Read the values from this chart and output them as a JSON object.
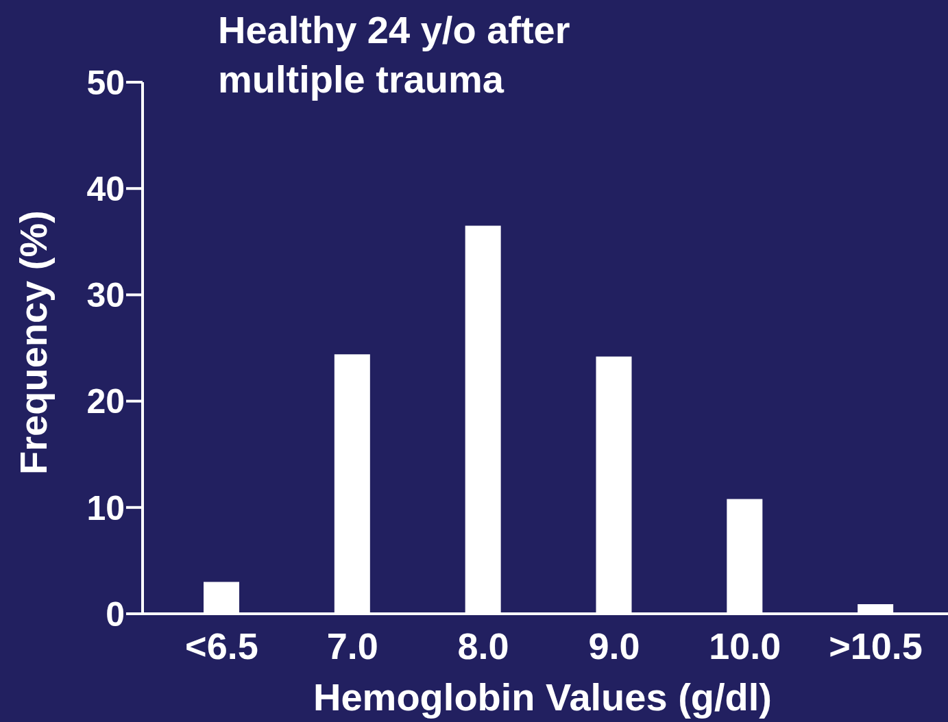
{
  "chart_data": {
    "type": "bar",
    "title": "Healthy 24 y/o after\nmultiple trauma",
    "xlabel": "Hemoglobin Values (g/dl)",
    "ylabel": "Frequency (%)",
    "categories": [
      "<6.5",
      "7.0",
      "8.0",
      "9.0",
      "10.0",
      ">10.5"
    ],
    "values": [
      3,
      24.4,
      36.5,
      24.2,
      10.8,
      0.9
    ],
    "color": "#ffffff",
    "ylim": [
      0,
      50
    ],
    "yticks": [
      0,
      10,
      20,
      30,
      40,
      50
    ],
    "grid": false,
    "legend": false
  }
}
